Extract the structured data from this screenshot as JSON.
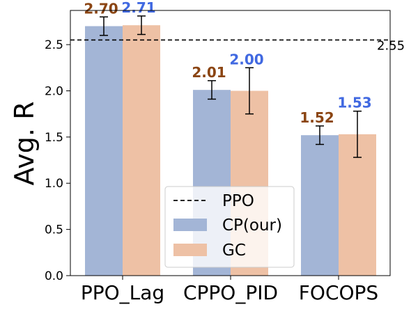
{
  "chart_data": {
    "type": "bar",
    "title": "",
    "xlabel": "",
    "ylabel": "Avg. R",
    "categories": [
      "PPO_Lag",
      "CPPO_PID",
      "FOCOPS"
    ],
    "series": [
      {
        "name": "CP(our)",
        "values": [
          2.7,
          2.01,
          1.52
        ],
        "errors": [
          0.1,
          0.1,
          0.1
        ],
        "labels": [
          "2.70",
          "2.01",
          "1.52"
        ],
        "color": "#a3b5d6",
        "label_color": "#8b4513"
      },
      {
        "name": "GC",
        "values": [
          2.71,
          2.0,
          1.53
        ],
        "errors": [
          0.1,
          0.25,
          0.25
        ],
        "labels": [
          "2.71",
          "2.00",
          "1.53"
        ],
        "color": "#eec1a5",
        "label_color": "#4169e1"
      }
    ],
    "reference_line": {
      "name": "PPO",
      "value": 2.55,
      "label": "2.55",
      "style": "dashed",
      "color": "#000000"
    },
    "ylim": [
      0,
      2.87
    ],
    "yticks": [
      {
        "value": 0.0,
        "label": "0.0"
      },
      {
        "value": 0.5,
        "label": "0.5"
      },
      {
        "value": 1.0,
        "label": "1.0"
      },
      {
        "value": 1.5,
        "label": "1.5"
      },
      {
        "value": 2.0,
        "label": "2.0"
      },
      {
        "value": 2.5,
        "label": "2.5"
      }
    ],
    "grid": false,
    "legend": {
      "placement": "lower-center",
      "entries": [
        {
          "label": "PPO",
          "kind": "dashed-line",
          "color": "#000000"
        },
        {
          "label": "CP(our)",
          "kind": "patch",
          "color": "#a3b5d6"
        },
        {
          "label": "GC",
          "kind": "patch",
          "color": "#eec1a5"
        }
      ]
    }
  }
}
